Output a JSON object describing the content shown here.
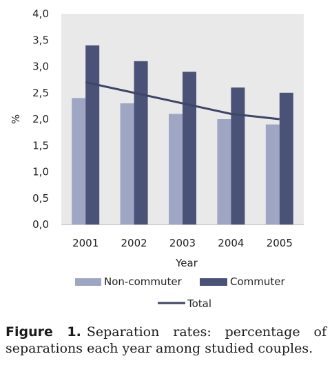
{
  "chart_data": {
    "type": "bar",
    "categories": [
      "2001",
      "2002",
      "2003",
      "2004",
      "2005"
    ],
    "series": [
      {
        "name": "Non-commuter",
        "type": "bar",
        "color": "#9fa6c4",
        "values": [
          2.4,
          2.3,
          2.1,
          2.0,
          1.9
        ]
      },
      {
        "name": "Commuter",
        "type": "bar",
        "color": "#4a5278",
        "values": [
          3.4,
          3.1,
          2.9,
          2.6,
          2.5
        ]
      },
      {
        "name": "Total",
        "type": "line",
        "color": "#3e4566",
        "values": [
          2.7,
          2.5,
          2.3,
          2.1,
          2.0
        ]
      }
    ],
    "xlabel": "Year",
    "ylabel": "%",
    "ylim": [
      0,
      4
    ],
    "yticks": [
      "0,0",
      "0,5",
      "1,0",
      "1,5",
      "2,0",
      "2,5",
      "3,0",
      "3,5",
      "4,0"
    ],
    "grid": false,
    "legend_position": "bottom"
  },
  "caption": {
    "label": "Figure 1.",
    "text": "Separation rates: percentage of separations each year among studied couples."
  }
}
